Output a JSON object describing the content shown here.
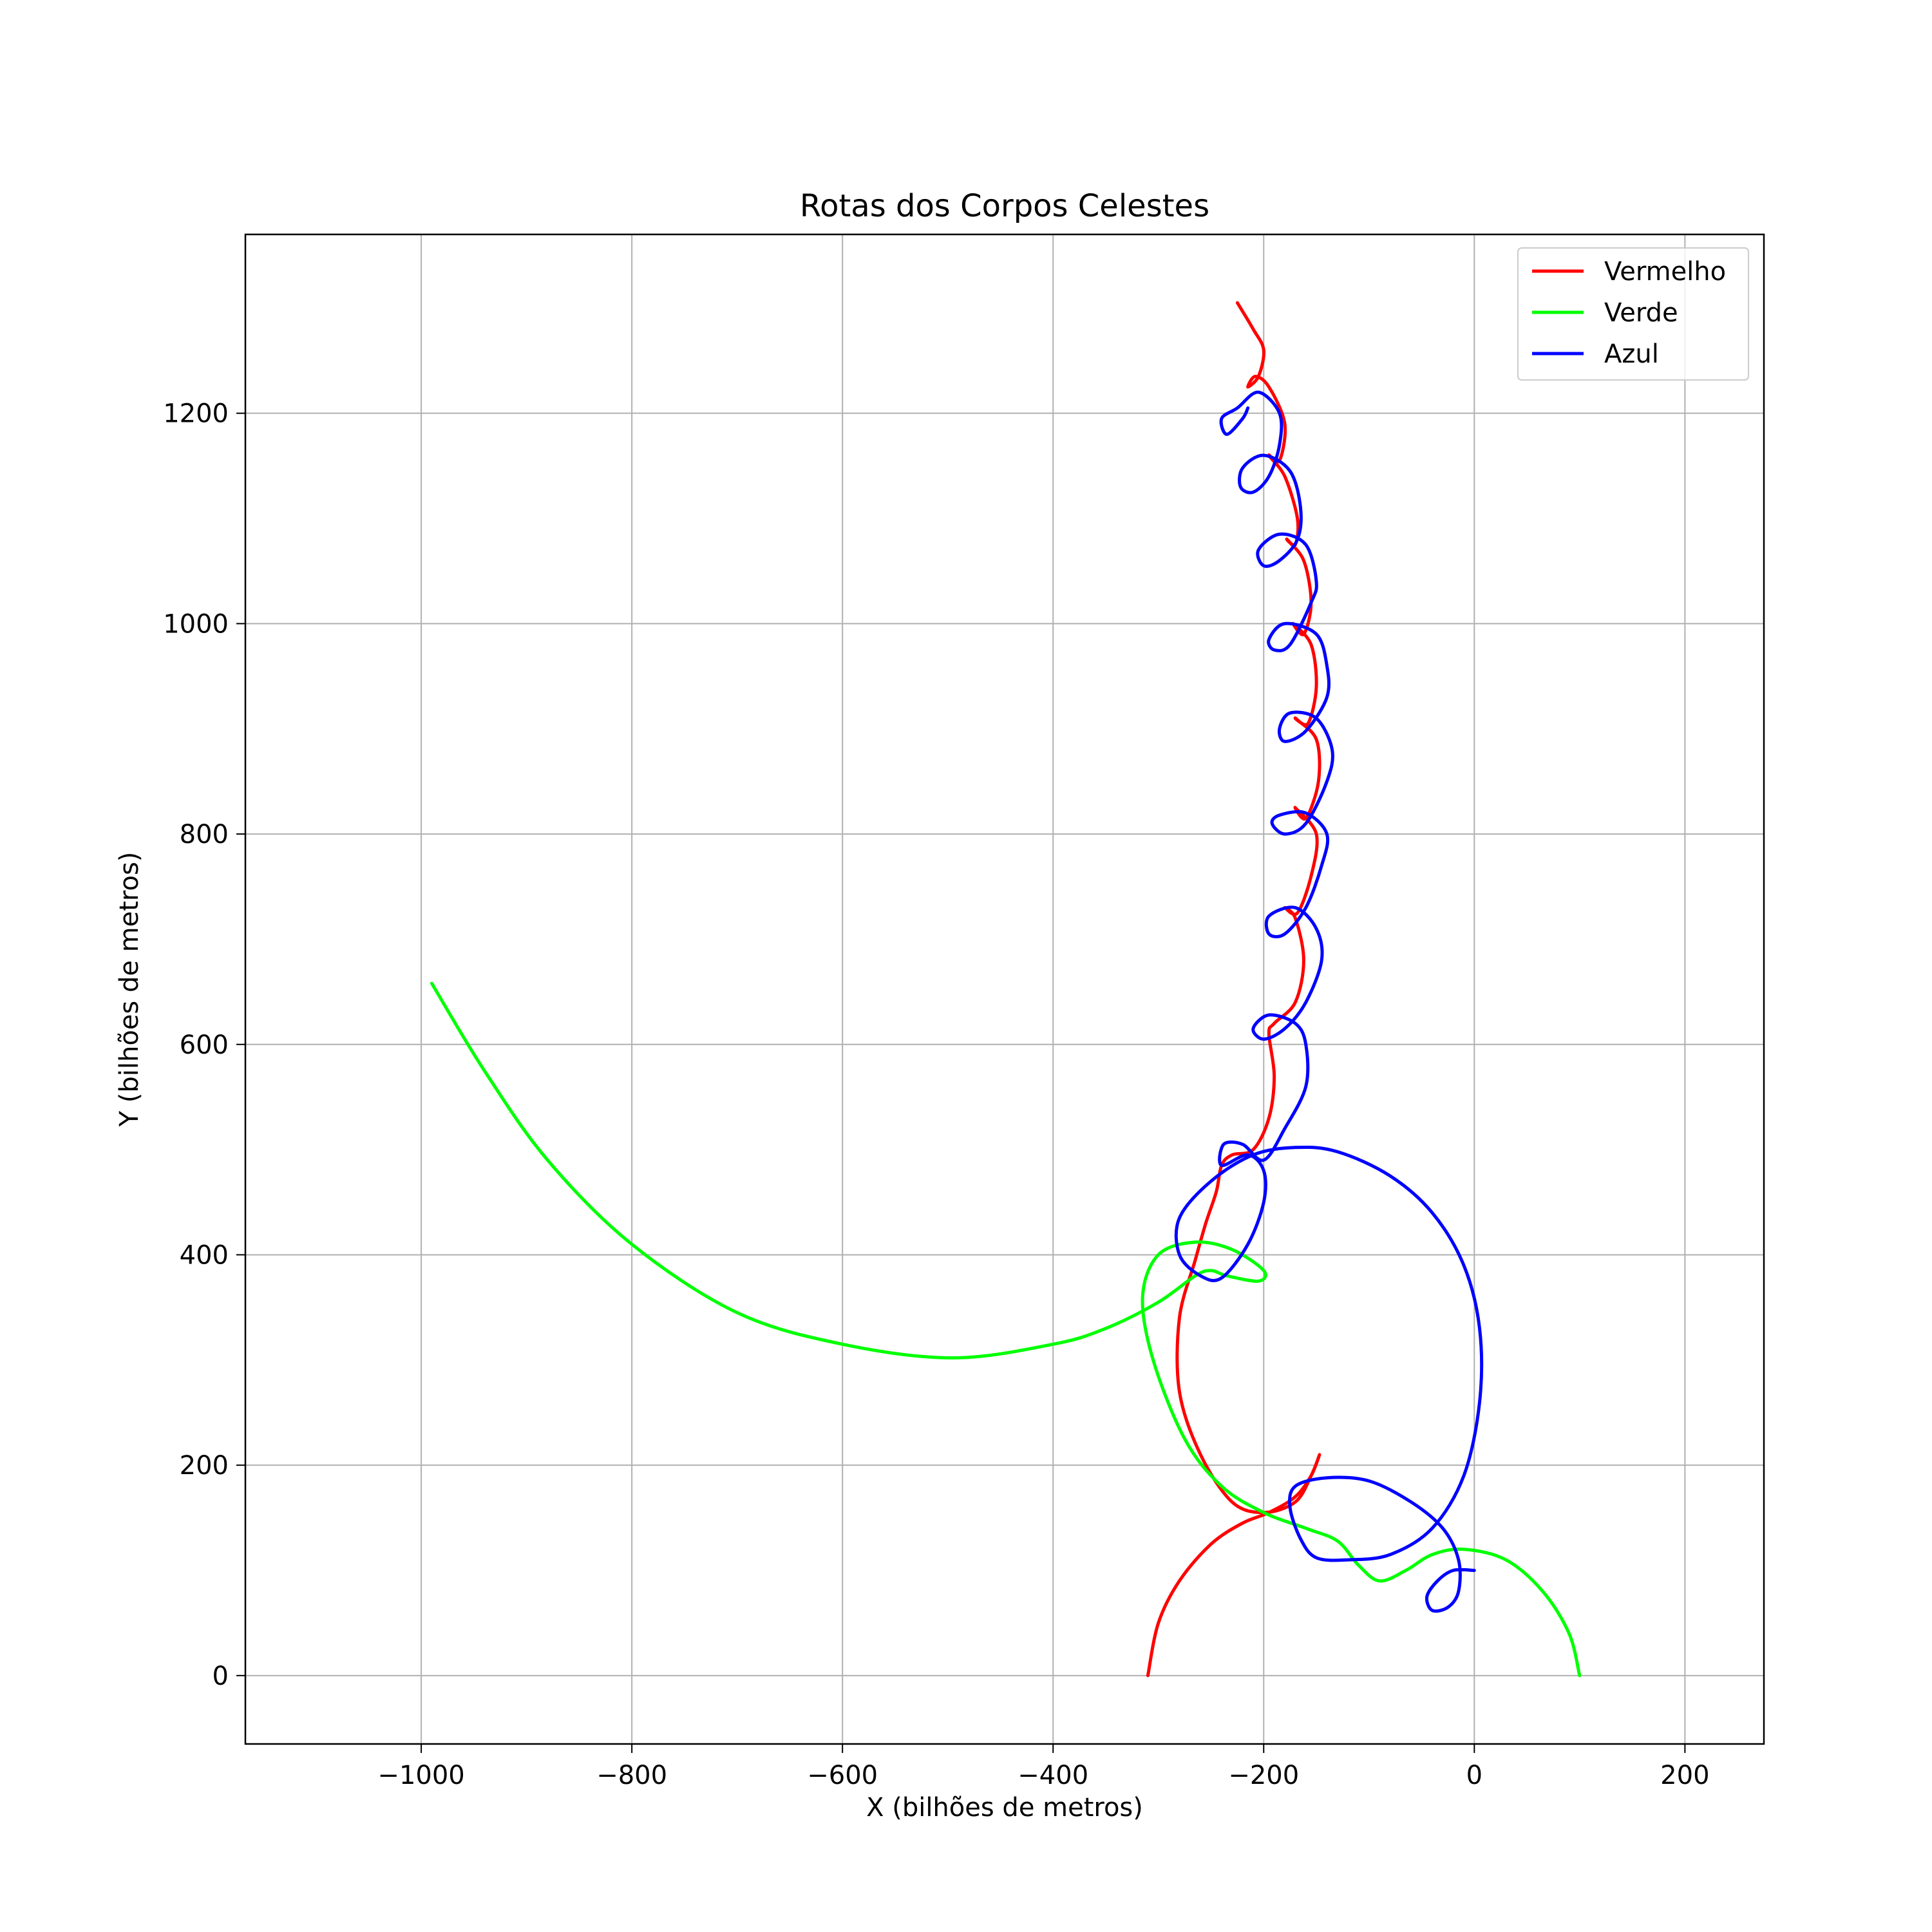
{
  "chart_data": {
    "type": "line",
    "title": "Rotas dos Corpos Celestes",
    "xlabel": "X (bilhões de metros)",
    "ylabel": "Y (bilhões de metros)",
    "xlim": [
      -1167,
      275
    ],
    "ylim": [
      -65,
      1370
    ],
    "x_ticks": [
      -1000,
      -800,
      -600,
      -400,
      -200,
      0,
      200
    ],
    "x_tick_labels": [
      "−1000",
      "−800",
      "−600",
      "−400",
      "−200",
      "0",
      "200"
    ],
    "y_ticks": [
      0,
      200,
      400,
      600,
      800,
      1000,
      1200
    ],
    "y_tick_labels": [
      "0",
      "200",
      "400",
      "600",
      "800",
      "1000",
      "1200"
    ],
    "grid": true,
    "legend_position": "top-right",
    "series": [
      {
        "name": "Vermelho",
        "color": "#ff0000",
        "points": [
          [
            -310,
            0
          ],
          [
            -300,
            50
          ],
          [
            -280,
            90
          ],
          [
            -250,
            125
          ],
          [
            -220,
            145
          ],
          [
            -195,
            155
          ],
          [
            -170,
            170
          ],
          [
            -155,
            190
          ],
          [
            -147,
            210
          ],
          [
            -155,
            190
          ],
          [
            -170,
            165
          ],
          [
            -200,
            155
          ],
          [
            -230,
            165
          ],
          [
            -260,
            210
          ],
          [
            -280,
            270
          ],
          [
            -280,
            340
          ],
          [
            -265,
            395
          ],
          [
            -255,
            430
          ],
          [
            -245,
            460
          ],
          [
            -240,
            485
          ],
          [
            -230,
            495
          ],
          [
            -210,
            500
          ],
          [
            -195,
            530
          ],
          [
            -190,
            570
          ],
          [
            -195,
            610
          ],
          [
            -190,
            620
          ],
          [
            -170,
            640
          ],
          [
            -162,
            680
          ],
          [
            -170,
            720
          ],
          [
            -180,
            730
          ],
          [
            -168,
            725
          ],
          [
            -155,
            760
          ],
          [
            -150,
            800
          ],
          [
            -170,
            825
          ],
          [
            -160,
            815
          ],
          [
            -148,
            850
          ],
          [
            -150,
            890
          ],
          [
            -170,
            910
          ],
          [
            -158,
            905
          ],
          [
            -150,
            940
          ],
          [
            -155,
            980
          ],
          [
            -172,
            1000
          ],
          [
            -162,
            990
          ],
          [
            -155,
            1020
          ],
          [
            -162,
            1060
          ],
          [
            -178,
            1080
          ],
          [
            -170,
            1075
          ],
          [
            -168,
            1100
          ],
          [
            -180,
            1140
          ],
          [
            -195,
            1160
          ],
          [
            -185,
            1155
          ],
          [
            -180,
            1190
          ],
          [
            -195,
            1225
          ],
          [
            -208,
            1235
          ],
          [
            -215,
            1225
          ],
          [
            -205,
            1235
          ],
          [
            -200,
            1260
          ],
          [
            -210,
            1280
          ],
          [
            -225,
            1305
          ]
        ]
      },
      {
        "name": "Verde",
        "color": "#00ff00",
        "points": [
          [
            100,
            0
          ],
          [
            90,
            40
          ],
          [
            65,
            80
          ],
          [
            30,
            110
          ],
          [
            -10,
            120
          ],
          [
            -40,
            115
          ],
          [
            -65,
            100
          ],
          [
            -90,
            90
          ],
          [
            -110,
            105
          ],
          [
            -130,
            128
          ],
          [
            -160,
            140
          ],
          [
            -200,
            155
          ],
          [
            -240,
            180
          ],
          [
            -275,
            225
          ],
          [
            -305,
            300
          ],
          [
            -315,
            360
          ],
          [
            -300,
            400
          ],
          [
            -265,
            412
          ],
          [
            -230,
            405
          ],
          [
            -200,
            385
          ],
          [
            -205,
            375
          ],
          [
            -235,
            380
          ],
          [
            -250,
            385
          ],
          [
            -265,
            380
          ],
          [
            -300,
            355
          ],
          [
            -350,
            330
          ],
          [
            -400,
            315
          ],
          [
            -495,
            302
          ],
          [
            -600,
            315
          ],
          [
            -700,
            345
          ],
          [
            -800,
            410
          ],
          [
            -880,
            490
          ],
          [
            -940,
            575
          ],
          [
            -990,
            658
          ]
        ]
      },
      {
        "name": "Azul",
        "color": "#0000ff",
        "points": [
          [
            0,
            100
          ],
          [
            -20,
            100
          ],
          [
            -35,
            90
          ],
          [
            -45,
            75
          ],
          [
            -40,
            62
          ],
          [
            -25,
            65
          ],
          [
            -15,
            80
          ],
          [
            -15,
            110
          ],
          [
            -30,
            140
          ],
          [
            -60,
            165
          ],
          [
            -100,
            185
          ],
          [
            -140,
            188
          ],
          [
            -170,
            180
          ],
          [
            -175,
            160
          ],
          [
            -165,
            130
          ],
          [
            -150,
            112
          ],
          [
            -120,
            110
          ],
          [
            -80,
            115
          ],
          [
            -40,
            140
          ],
          [
            -10,
            190
          ],
          [
            5,
            260
          ],
          [
            5,
            330
          ],
          [
            -10,
            390
          ],
          [
            -40,
            440
          ],
          [
            -80,
            475
          ],
          [
            -130,
            498
          ],
          [
            -170,
            502
          ],
          [
            -210,
            495
          ],
          [
            -250,
            470
          ],
          [
            -280,
            435
          ],
          [
            -280,
            400
          ],
          [
            -260,
            380
          ],
          [
            -240,
            378
          ],
          [
            -215,
            410
          ],
          [
            -200,
            450
          ],
          [
            -200,
            480
          ],
          [
            -215,
            495
          ],
          [
            -240,
            485
          ],
          [
            -238,
            505
          ],
          [
            -220,
            505
          ],
          [
            -200,
            490
          ],
          [
            -180,
            520
          ],
          [
            -160,
            560
          ],
          [
            -160,
            600
          ],
          [
            -170,
            620
          ],
          [
            -195,
            628
          ],
          [
            -210,
            615
          ],
          [
            -200,
            605
          ],
          [
            -180,
            615
          ],
          [
            -160,
            640
          ],
          [
            -145,
            680
          ],
          [
            -150,
            710
          ],
          [
            -170,
            730
          ],
          [
            -195,
            722
          ],
          [
            -195,
            705
          ],
          [
            -180,
            705
          ],
          [
            -160,
            730
          ],
          [
            -145,
            770
          ],
          [
            -140,
            800
          ],
          [
            -160,
            820
          ],
          [
            -185,
            818
          ],
          [
            -192,
            810
          ],
          [
            -180,
            800
          ],
          [
            -160,
            810
          ],
          [
            -140,
            850
          ],
          [
            -135,
            880
          ],
          [
            -150,
            910
          ],
          [
            -175,
            915
          ],
          [
            -185,
            900
          ],
          [
            -180,
            888
          ],
          [
            -160,
            898
          ],
          [
            -140,
            930
          ],
          [
            -140,
            960
          ],
          [
            -150,
            990
          ],
          [
            -180,
            1000
          ],
          [
            -195,
            985
          ],
          [
            -190,
            975
          ],
          [
            -175,
            980
          ],
          [
            -155,
            1020
          ],
          [
            -150,
            1040
          ],
          [
            -160,
            1075
          ],
          [
            -185,
            1085
          ],
          [
            -205,
            1070
          ],
          [
            -200,
            1055
          ],
          [
            -185,
            1060
          ],
          [
            -168,
            1080
          ],
          [
            -165,
            1110
          ],
          [
            -175,
            1145
          ],
          [
            -200,
            1160
          ],
          [
            -220,
            1148
          ],
          [
            -222,
            1130
          ],
          [
            -210,
            1125
          ],
          [
            -195,
            1140
          ],
          [
            -185,
            1170
          ],
          [
            -185,
            1200
          ],
          [
            -205,
            1220
          ],
          [
            -225,
            1205
          ],
          [
            -240,
            1195
          ],
          [
            -235,
            1180
          ],
          [
            -220,
            1195
          ],
          [
            -215,
            1205
          ]
        ]
      }
    ]
  }
}
